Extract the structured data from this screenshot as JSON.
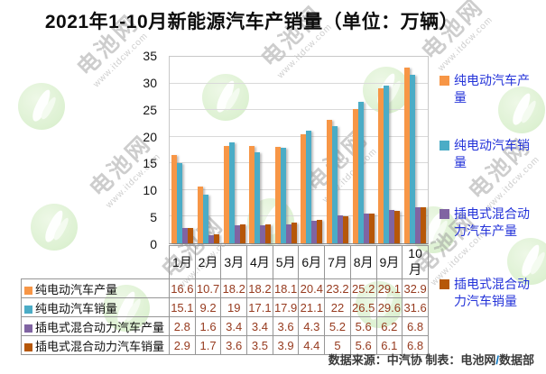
{
  "title": "2021年1-10月新能源汽车产销量（单位：万辆）",
  "chart_data": {
    "type": "bar",
    "title": "2021年1-10月新能源汽车产销量（单位：万辆）",
    "unit": "万辆",
    "categories": [
      "1月",
      "2月",
      "3月",
      "4月",
      "5月",
      "6月",
      "7月",
      "8月",
      "9月",
      "10月"
    ],
    "series": [
      {
        "name": "纯电动汽车产量",
        "color": "#F79646",
        "values": [
          16.6,
          10.7,
          18.2,
          18.2,
          18.1,
          20.4,
          23.2,
          25.2,
          29.1,
          32.9
        ]
      },
      {
        "name": "纯电动汽车销量",
        "color": "#4BACC6",
        "values": [
          15.1,
          9.2,
          19,
          17.1,
          17.9,
          21.1,
          22,
          26.5,
          29.6,
          31.6
        ]
      },
      {
        "name": "插电式混合动力汽车产量",
        "color": "#8064A2",
        "values": [
          2.8,
          1.6,
          3.4,
          3.4,
          3.6,
          4.3,
          5.2,
          5.6,
          6.2,
          6.8
        ]
      },
      {
        "name": "插电式混合动力汽车销量",
        "color": "#B65708",
        "values": [
          2.9,
          1.7,
          3.6,
          3.5,
          3.9,
          4.4,
          5,
          5.6,
          6.1,
          6.8
        ]
      }
    ],
    "ylim": [
      0,
      35
    ],
    "yticks": [
      0,
      5,
      10,
      15,
      20,
      25,
      30,
      35
    ],
    "grid": true,
    "legend_position": "right",
    "show_data_table": true
  },
  "footer": {
    "prefix": "数据来源：中汽协  制表：电池网",
    "slash": "/",
    "suffix": "数据部"
  },
  "watermark": {
    "brand": "电池网",
    "url": "www.itdcw.com"
  },
  "colors": {
    "legend_text": "#2433d9",
    "table_value_text": "#963a1e",
    "gridline": "#d9d9d9",
    "table_border": "#969696"
  }
}
